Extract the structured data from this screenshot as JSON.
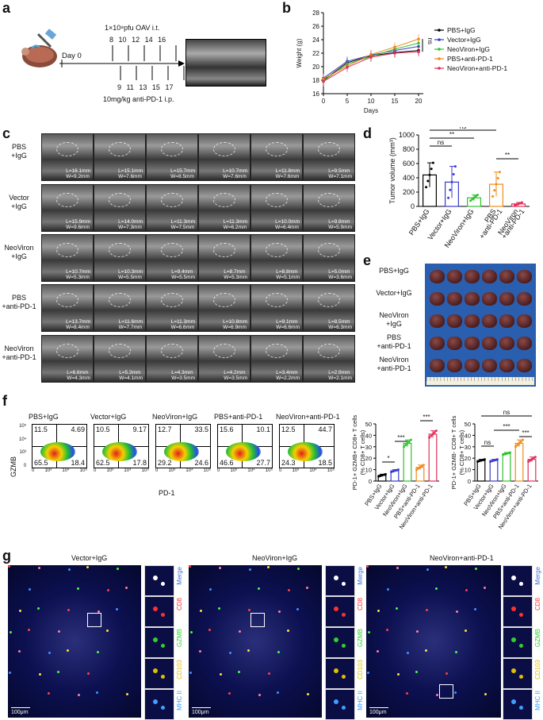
{
  "panels": {
    "a": "a",
    "b": "b",
    "c": "c",
    "d": "d",
    "e": "e",
    "f": "f",
    "g": "g"
  },
  "panel_a": {
    "dose_oav": "1×10⁸pfu OAV i.t.",
    "day0": "Day 0",
    "days_top": [
      "8",
      "10",
      "12",
      "14",
      "16"
    ],
    "days_bottom": [
      "9",
      "11",
      "13",
      "15",
      "17"
    ],
    "dose_pd1": "10mg/kg anti-PD-1 i.p."
  },
  "groups_c": [
    "PBS\n+IgG",
    "Vector\n+IgG",
    "NeoViron\n+IgG",
    "PBS\n+anti-PD-1",
    "NeoViron\n+anti-PD-1"
  ],
  "us_labels": [
    [
      "L=16.1mm W=9.2mm",
      "L=15.1mm W=7.6mm",
      "L=15.7mm W=8.5mm",
      "L=10.7mm W=7.6mm",
      "L=11.8mm W=7.6mm",
      "L=9.5mm W=7.1mm"
    ],
    [
      "L=15.9mm W=9.6mm",
      "L=14.0mm W=7.3mm",
      "L=11.3mm W=7.5mm",
      "L=11.3mm W=6.2mm",
      "L=10.0mm W=6.4mm",
      "L=9.8mm W=5.9mm"
    ],
    [
      "L=10.7mm W=5.3mm",
      "L=10.3mm W=5.5mm",
      "L=9.4mm W=5.5mm",
      "L=8.7mm W=5.3mm",
      "L=8.8mm W=5.1mm",
      "L=5.0mm W=3.6mm"
    ],
    [
      "L=13.7mm W=8.4mm",
      "L=11.6mm W=7.7mm",
      "L=11.3mm W=6.6mm",
      "L=10.8mm W=6.9mm",
      "L=9.1mm W=6.6mm",
      "L=8.5mm W=6.3mm"
    ],
    [
      "L=6.6mm W=4.3mm",
      "L=5.3mm W=4.1mm",
      "L=4.3mm W=3.5mm",
      "L=4.2mm W=3.5mm",
      "L=3.4mm W=2.2mm",
      "L=2.9mm W=2.1mm"
    ]
  ],
  "groups_e": [
    "PBS+IgG",
    "Vector+IgG",
    "NeoViron\n+IgG",
    "PBS\n+anti-PD-1",
    "NeoViron\n+anti-PD-1"
  ],
  "panel_f": {
    "titles": [
      "PBS+IgG",
      "Vector+IgG",
      "NeoViron+IgG",
      "PBS+anti-PD-1",
      "NeoViron+anti-PD-1"
    ],
    "quadrants": [
      [
        "11.5",
        "4.69",
        "65.5",
        "18.4"
      ],
      [
        "10.5",
        "9.17",
        "62.5",
        "17.8"
      ],
      [
        "12.7",
        "33.5",
        "29.2",
        "24.6"
      ],
      [
        "15.6",
        "10.1",
        "46.6",
        "27.7"
      ],
      [
        "12.5",
        "44.7",
        "24.3",
        "18.5"
      ]
    ],
    "ylabel": "GZMB",
    "xlabel": "PD-1",
    "y_ticks": [
      "10⁵",
      "10⁴",
      "10³",
      "0"
    ],
    "x_ticks": [
      "0",
      "10³",
      "10⁴",
      "10⁵"
    ]
  },
  "panel_g": {
    "titles": [
      "Vector+IgG",
      "NeoViron+IgG",
      "NeoViron+anti-PD-1"
    ],
    "channels": [
      "Merge",
      "CD8",
      "GZMB",
      "CD103",
      "MHC II"
    ],
    "channel_colors": [
      "#ffffff",
      "#ff3030",
      "#30d030",
      "#e0c000",
      "#40a0ff"
    ],
    "scale": "100μm"
  },
  "chart_data": [
    {
      "type": "line",
      "panel": "b",
      "ylabel": "Weight (g)",
      "xlabel": "Days",
      "x": [
        0,
        5,
        10,
        15,
        20
      ],
      "xlim": [
        0,
        20
      ],
      "ylim": [
        16,
        28
      ],
      "y_ticks": [
        16,
        18,
        20,
        22,
        24,
        26,
        28
      ],
      "annotation": "ns",
      "series": [
        {
          "name": "PBS+IgG",
          "color": "#000000",
          "values": [
            18.0,
            20.6,
            21.6,
            22.1,
            22.4
          ]
        },
        {
          "name": "Vector+IgG",
          "color": "#3a3ad0",
          "values": [
            18.3,
            20.8,
            21.7,
            22.4,
            23.0
          ]
        },
        {
          "name": "NeoViron+IgG",
          "color": "#2ec42e",
          "values": [
            17.9,
            20.4,
            21.5,
            22.6,
            23.5
          ]
        },
        {
          "name": "PBS+anti-PD-1",
          "color": "#f08a1a",
          "values": [
            18.2,
            20.1,
            21.8,
            22.9,
            24.1
          ]
        },
        {
          "name": "NeoViron+anti-PD-1",
          "color": "#e0305a",
          "values": [
            17.8,
            19.9,
            21.4,
            22.0,
            22.2
          ]
        }
      ]
    },
    {
      "type": "bar",
      "panel": "d",
      "ylabel": "Tumor volume (mm³)",
      "categories": [
        "PBS+IgG",
        "Vector+IgG",
        "NeoViron+IgG",
        "PBS\n+anti-PD-1",
        "NeoViron\n+anti-PD-1"
      ],
      "values": [
        440,
        340,
        120,
        310,
        35
      ],
      "errors": [
        170,
        220,
        40,
        170,
        20
      ],
      "colors": [
        "#000000",
        "#3a3ad0",
        "#2ec42e",
        "#f08a1a",
        "#e0305a"
      ],
      "ylim": [
        0,
        1000
      ],
      "y_ticks": [
        0,
        200,
        400,
        600,
        800,
        1000
      ],
      "sig": [
        [
          "ns",
          0,
          1
        ],
        [
          "**",
          0,
          2
        ],
        [
          "ns",
          0,
          3
        ],
        [
          "**",
          3,
          4
        ]
      ]
    },
    {
      "type": "bar",
      "panel": "f1",
      "ylabel": "PD-1+ GZMB+ CD8+ T cells\n(% CD8+ T cells)",
      "categories": [
        "PBS+IgG",
        "Vector+IgG",
        "NeoViron+IgG",
        "PBS+anti-PD-1",
        "NeoViron+anti-PD-1"
      ],
      "values": [
        5,
        9,
        33,
        12,
        41
      ],
      "errors": [
        1,
        1,
        3,
        2,
        3
      ],
      "colors": [
        "#000000",
        "#3a3ad0",
        "#2ec42e",
        "#f08a1a",
        "#e0305a"
      ],
      "ylim": [
        0,
        50
      ],
      "y_ticks": [
        0,
        10,
        20,
        30,
        40,
        50
      ],
      "sig": [
        [
          "*",
          0,
          1
        ],
        [
          "***",
          1,
          2
        ],
        [
          "***",
          3,
          4
        ]
      ]
    },
    {
      "type": "bar",
      "panel": "f2",
      "ylabel": "PD-1+ GZMB- CD8+ T cells\n(% CD8+ T cells)",
      "categories": [
        "PBS+IgG",
        "Vector+IgG",
        "NeoViron+IgG",
        "PBS+anti-PD-1",
        "NeoViron+anti-PD-1"
      ],
      "values": [
        18,
        18,
        24,
        33,
        19
      ],
      "errors": [
        1,
        1,
        1,
        3,
        2
      ],
      "colors": [
        "#000000",
        "#3a3ad0",
        "#2ec42e",
        "#f08a1a",
        "#e0305a"
      ],
      "ylim": [
        0,
        50
      ],
      "y_ticks": [
        0,
        10,
        20,
        30,
        40,
        50
      ],
      "sig": [
        [
          "ns",
          0,
          1
        ],
        [
          "***",
          1,
          3
        ],
        [
          "***",
          3,
          4
        ],
        [
          "ns",
          0,
          4
        ]
      ]
    }
  ]
}
